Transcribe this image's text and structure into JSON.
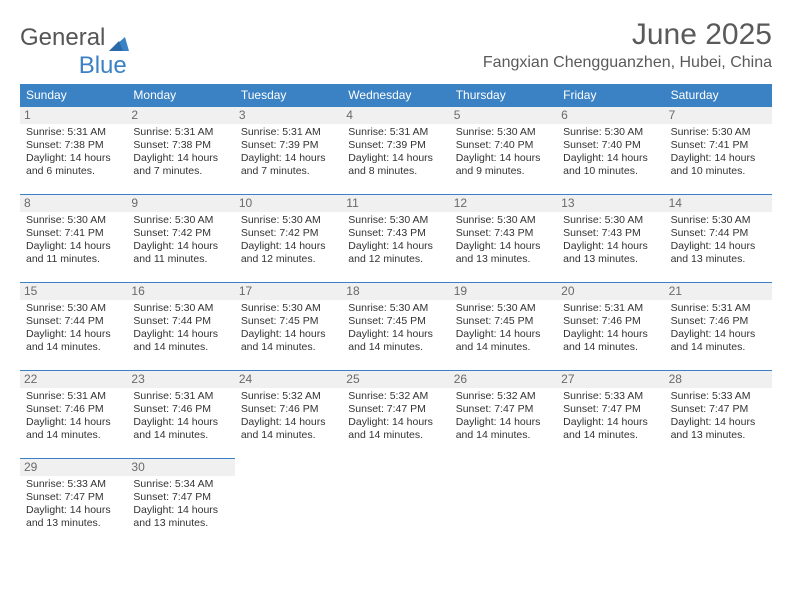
{
  "brand": {
    "part1": "General",
    "part2": "Blue"
  },
  "title": "June 2025",
  "location": "Fangxian Chengguanzhen, Hubei, China",
  "colors": {
    "header_bg": "#3b82c4",
    "header_fg": "#ffffff",
    "daynum_bg": "#f0f0f0",
    "text": "#333333",
    "cell_border": "#3b82c4"
  },
  "day_labels": [
    "Sunday",
    "Monday",
    "Tuesday",
    "Wednesday",
    "Thursday",
    "Friday",
    "Saturday"
  ],
  "weeks": [
    [
      {
        "n": "1",
        "sr": "Sunrise: 5:31 AM",
        "ss": "Sunset: 7:38 PM",
        "d1": "Daylight: 14 hours",
        "d2": "and 6 minutes."
      },
      {
        "n": "2",
        "sr": "Sunrise: 5:31 AM",
        "ss": "Sunset: 7:38 PM",
        "d1": "Daylight: 14 hours",
        "d2": "and 7 minutes."
      },
      {
        "n": "3",
        "sr": "Sunrise: 5:31 AM",
        "ss": "Sunset: 7:39 PM",
        "d1": "Daylight: 14 hours",
        "d2": "and 7 minutes."
      },
      {
        "n": "4",
        "sr": "Sunrise: 5:31 AM",
        "ss": "Sunset: 7:39 PM",
        "d1": "Daylight: 14 hours",
        "d2": "and 8 minutes."
      },
      {
        "n": "5",
        "sr": "Sunrise: 5:30 AM",
        "ss": "Sunset: 7:40 PM",
        "d1": "Daylight: 14 hours",
        "d2": "and 9 minutes."
      },
      {
        "n": "6",
        "sr": "Sunrise: 5:30 AM",
        "ss": "Sunset: 7:40 PM",
        "d1": "Daylight: 14 hours",
        "d2": "and 10 minutes."
      },
      {
        "n": "7",
        "sr": "Sunrise: 5:30 AM",
        "ss": "Sunset: 7:41 PM",
        "d1": "Daylight: 14 hours",
        "d2": "and 10 minutes."
      }
    ],
    [
      {
        "n": "8",
        "sr": "Sunrise: 5:30 AM",
        "ss": "Sunset: 7:41 PM",
        "d1": "Daylight: 14 hours",
        "d2": "and 11 minutes."
      },
      {
        "n": "9",
        "sr": "Sunrise: 5:30 AM",
        "ss": "Sunset: 7:42 PM",
        "d1": "Daylight: 14 hours",
        "d2": "and 11 minutes."
      },
      {
        "n": "10",
        "sr": "Sunrise: 5:30 AM",
        "ss": "Sunset: 7:42 PM",
        "d1": "Daylight: 14 hours",
        "d2": "and 12 minutes."
      },
      {
        "n": "11",
        "sr": "Sunrise: 5:30 AM",
        "ss": "Sunset: 7:43 PM",
        "d1": "Daylight: 14 hours",
        "d2": "and 12 minutes."
      },
      {
        "n": "12",
        "sr": "Sunrise: 5:30 AM",
        "ss": "Sunset: 7:43 PM",
        "d1": "Daylight: 14 hours",
        "d2": "and 13 minutes."
      },
      {
        "n": "13",
        "sr": "Sunrise: 5:30 AM",
        "ss": "Sunset: 7:43 PM",
        "d1": "Daylight: 14 hours",
        "d2": "and 13 minutes."
      },
      {
        "n": "14",
        "sr": "Sunrise: 5:30 AM",
        "ss": "Sunset: 7:44 PM",
        "d1": "Daylight: 14 hours",
        "d2": "and 13 minutes."
      }
    ],
    [
      {
        "n": "15",
        "sr": "Sunrise: 5:30 AM",
        "ss": "Sunset: 7:44 PM",
        "d1": "Daylight: 14 hours",
        "d2": "and 14 minutes."
      },
      {
        "n": "16",
        "sr": "Sunrise: 5:30 AM",
        "ss": "Sunset: 7:44 PM",
        "d1": "Daylight: 14 hours",
        "d2": "and 14 minutes."
      },
      {
        "n": "17",
        "sr": "Sunrise: 5:30 AM",
        "ss": "Sunset: 7:45 PM",
        "d1": "Daylight: 14 hours",
        "d2": "and 14 minutes."
      },
      {
        "n": "18",
        "sr": "Sunrise: 5:30 AM",
        "ss": "Sunset: 7:45 PM",
        "d1": "Daylight: 14 hours",
        "d2": "and 14 minutes."
      },
      {
        "n": "19",
        "sr": "Sunrise: 5:30 AM",
        "ss": "Sunset: 7:45 PM",
        "d1": "Daylight: 14 hours",
        "d2": "and 14 minutes."
      },
      {
        "n": "20",
        "sr": "Sunrise: 5:31 AM",
        "ss": "Sunset: 7:46 PM",
        "d1": "Daylight: 14 hours",
        "d2": "and 14 minutes."
      },
      {
        "n": "21",
        "sr": "Sunrise: 5:31 AM",
        "ss": "Sunset: 7:46 PM",
        "d1": "Daylight: 14 hours",
        "d2": "and 14 minutes."
      }
    ],
    [
      {
        "n": "22",
        "sr": "Sunrise: 5:31 AM",
        "ss": "Sunset: 7:46 PM",
        "d1": "Daylight: 14 hours",
        "d2": "and 14 minutes."
      },
      {
        "n": "23",
        "sr": "Sunrise: 5:31 AM",
        "ss": "Sunset: 7:46 PM",
        "d1": "Daylight: 14 hours",
        "d2": "and 14 minutes."
      },
      {
        "n": "24",
        "sr": "Sunrise: 5:32 AM",
        "ss": "Sunset: 7:46 PM",
        "d1": "Daylight: 14 hours",
        "d2": "and 14 minutes."
      },
      {
        "n": "25",
        "sr": "Sunrise: 5:32 AM",
        "ss": "Sunset: 7:47 PM",
        "d1": "Daylight: 14 hours",
        "d2": "and 14 minutes."
      },
      {
        "n": "26",
        "sr": "Sunrise: 5:32 AM",
        "ss": "Sunset: 7:47 PM",
        "d1": "Daylight: 14 hours",
        "d2": "and 14 minutes."
      },
      {
        "n": "27",
        "sr": "Sunrise: 5:33 AM",
        "ss": "Sunset: 7:47 PM",
        "d1": "Daylight: 14 hours",
        "d2": "and 14 minutes."
      },
      {
        "n": "28",
        "sr": "Sunrise: 5:33 AM",
        "ss": "Sunset: 7:47 PM",
        "d1": "Daylight: 14 hours",
        "d2": "and 13 minutes."
      }
    ],
    [
      {
        "n": "29",
        "sr": "Sunrise: 5:33 AM",
        "ss": "Sunset: 7:47 PM",
        "d1": "Daylight: 14 hours",
        "d2": "and 13 minutes."
      },
      {
        "n": "30",
        "sr": "Sunrise: 5:34 AM",
        "ss": "Sunset: 7:47 PM",
        "d1": "Daylight: 14 hours",
        "d2": "and 13 minutes."
      },
      null,
      null,
      null,
      null,
      null
    ]
  ]
}
